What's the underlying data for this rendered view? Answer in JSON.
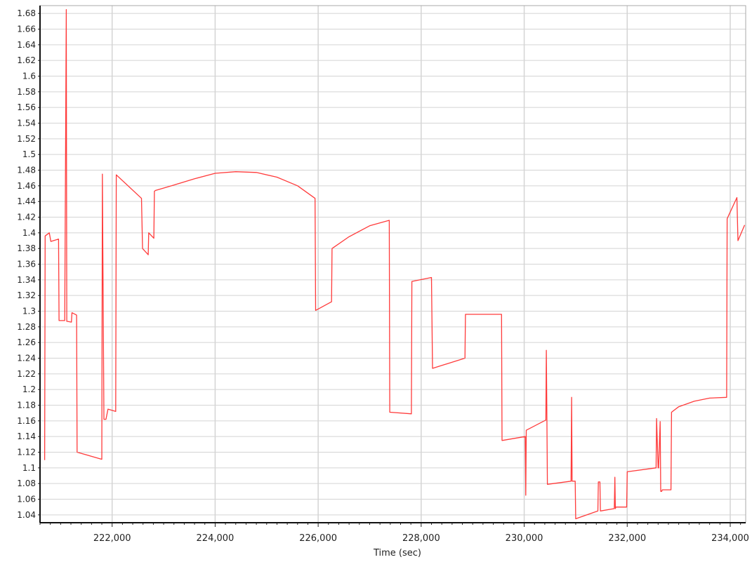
{
  "chart_data": {
    "type": "line",
    "title": "",
    "xlabel": "Time (sec)",
    "ylabel": "",
    "xlim": [
      220600,
      234300
    ],
    "ylim": [
      1.03,
      1.69
    ],
    "grid": true,
    "x_ticks": [
      222000,
      224000,
      226000,
      228000,
      230000,
      232000,
      234000
    ],
    "x_tick_labels": [
      "222,000",
      "224,000",
      "226,000",
      "228,000",
      "230,000",
      "232,000",
      "234,000"
    ],
    "y_ticks": [
      1.04,
      1.06,
      1.08,
      1.1,
      1.12,
      1.14,
      1.16,
      1.18,
      1.2,
      1.22,
      1.24,
      1.26,
      1.28,
      1.3,
      1.32,
      1.34,
      1.36,
      1.38,
      1.4,
      1.42,
      1.44,
      1.46,
      1.48,
      1.5,
      1.52,
      1.54,
      1.56,
      1.58,
      1.6,
      1.62,
      1.64,
      1.66,
      1.68
    ],
    "y_tick_labels": [
      "1.04",
      "1.06",
      "1.08",
      "1.1",
      "1.12",
      "1.14",
      "1.16",
      "1.18",
      "1.2",
      "1.22",
      "1.24",
      "1.26",
      "1.28",
      "1.3",
      "1.32",
      "1.34",
      "1.36",
      "1.38",
      "1.4",
      "1.42",
      "1.44",
      "1.46",
      "1.48",
      "1.5",
      "1.52",
      "1.54",
      "1.56",
      "1.58",
      "1.6",
      "1.62",
      "1.64",
      "1.66",
      "1.68"
    ],
    "series": [
      {
        "color": "#ff3b3b",
        "x": [
          220690,
          220700,
          220780,
          220810,
          220960,
          220970,
          221080,
          221110,
          221120,
          221130,
          221210,
          221220,
          221310,
          221320,
          221800,
          221810,
          221840,
          221880,
          221920,
          222070,
          222080,
          222570,
          222590,
          222700,
          222710,
          222810,
          222820,
          222840,
          223200,
          223600,
          224000,
          224400,
          224800,
          225200,
          225600,
          225940,
          225950,
          226260,
          226270,
          226600,
          227000,
          227380,
          227390,
          227810,
          227820,
          228200,
          228220,
          228850,
          228860,
          229560,
          229570,
          230020,
          230030,
          230040,
          230420,
          230430,
          230440,
          230450,
          230910,
          230920,
          230930,
          230990,
          231000,
          231430,
          231440,
          231470,
          231480,
          231750,
          231760,
          231770,
          231780,
          231990,
          232000,
          232560,
          232570,
          232600,
          232610,
          232640,
          232650,
          232670,
          232680,
          232850,
          232860,
          233000,
          233300,
          233600,
          233930,
          233940,
          234130,
          234150,
          234280
        ],
        "y": [
          1.11,
          1.396,
          1.4,
          1.389,
          1.392,
          1.288,
          1.288,
          1.685,
          1.287,
          1.287,
          1.286,
          1.298,
          1.295,
          1.12,
          1.111,
          1.475,
          1.162,
          1.162,
          1.175,
          1.172,
          1.474,
          1.444,
          1.38,
          1.372,
          1.4,
          1.393,
          1.453,
          1.454,
          1.461,
          1.469,
          1.476,
          1.478,
          1.477,
          1.471,
          1.46,
          1.444,
          1.301,
          1.312,
          1.38,
          1.395,
          1.409,
          1.416,
          1.171,
          1.169,
          1.338,
          1.343,
          1.227,
          1.24,
          1.296,
          1.296,
          1.135,
          1.14,
          1.065,
          1.148,
          1.161,
          1.25,
          1.175,
          1.079,
          1.083,
          1.19,
          1.083,
          1.083,
          1.035,
          1.045,
          1.082,
          1.082,
          1.045,
          1.048,
          1.088,
          1.048,
          1.05,
          1.05,
          1.095,
          1.1,
          1.163,
          1.1,
          1.1,
          1.159,
          1.07,
          1.07,
          1.072,
          1.072,
          1.171,
          1.178,
          1.185,
          1.189,
          1.19,
          1.418,
          1.445,
          1.39,
          1.41
        ]
      }
    ]
  }
}
